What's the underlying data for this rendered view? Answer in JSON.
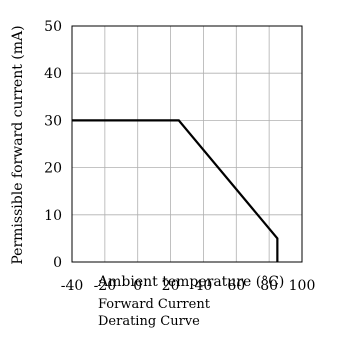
{
  "chart_data": {
    "type": "line",
    "title": "",
    "xlabel": "Ambient temperature (°C)",
    "ylabel": "Permissible forward current (mA)",
    "xlim": [
      -40,
      100
    ],
    "ylim": [
      0,
      50
    ],
    "x_ticks": [
      -40,
      -20,
      0,
      20,
      40,
      60,
      80,
      100
    ],
    "y_ticks": [
      0,
      10,
      20,
      30,
      40,
      50
    ],
    "grid": true,
    "series": [
      {
        "x": [
          -40,
          25,
          85,
          85
        ],
        "y": [
          30,
          30,
          5,
          0
        ]
      }
    ],
    "caption_lines": [
      "Forward Current",
      "Derating  Curve"
    ]
  }
}
